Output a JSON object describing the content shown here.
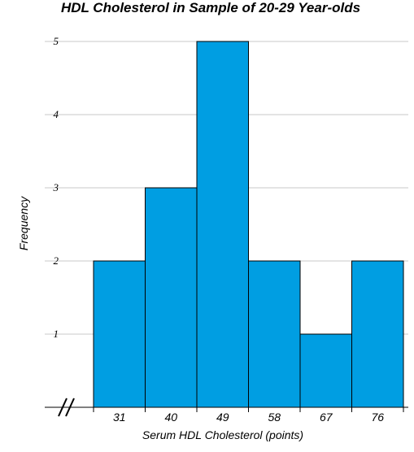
{
  "chart_data": {
    "type": "bar",
    "title": "HDL Cholesterol in Sample of 20-29 Year-olds",
    "xlabel": "Serum HDL Cholesterol (points)",
    "ylabel": "Frequency",
    "categories": [
      "31",
      "40",
      "49",
      "58",
      "67",
      "76"
    ],
    "values": [
      2,
      3,
      5,
      2,
      1,
      2
    ],
    "ylim": [
      0,
      5
    ],
    "yticks": [
      "1",
      "2",
      "3",
      "4",
      "5"
    ],
    "grid": true,
    "axis_break": true,
    "bar_color": "#009ee2",
    "bar_edge_color": "#000000",
    "grid_color": "#c8c8c8"
  }
}
